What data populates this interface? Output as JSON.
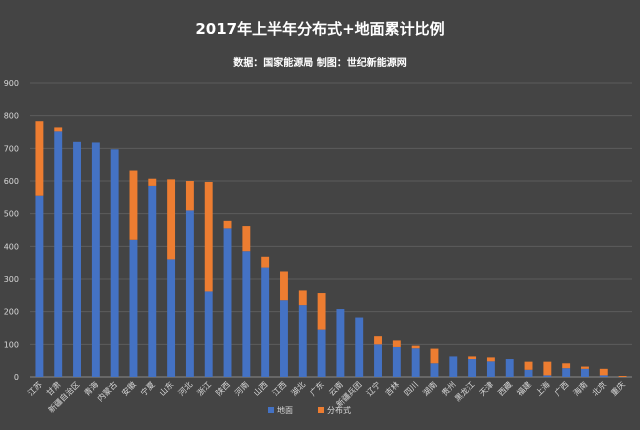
{
  "chart_data": {
    "type": "bar",
    "stacked": true,
    "title": "2017年上半年分布式+地面累计比例",
    "subtitle": "数据：国家能源局 制图：世纪新能源网",
    "ylim": [
      0,
      900
    ],
    "yticks": [
      0,
      100,
      200,
      300,
      400,
      500,
      600,
      700,
      800,
      900
    ],
    "grid": true,
    "legend_position": "bottom",
    "categories": [
      "江苏",
      "甘肃",
      "新疆自治区",
      "青海",
      "内蒙古",
      "安徽",
      "宁夏",
      "山东",
      "河北",
      "浙江",
      "陕西",
      "河南",
      "山西",
      "江西",
      "湖北",
      "广东",
      "云南",
      "新疆兵团",
      "辽宁",
      "吉林",
      "四川",
      "湖南",
      "贵州",
      "黑龙江",
      "天津",
      "西藏",
      "福建",
      "上海",
      "广西",
      "海南",
      "北京",
      "重庆"
    ],
    "series": [
      {
        "name": "地面",
        "color": "#4472C4",
        "values": [
          555,
          752,
          720,
          718,
          697,
          420,
          585,
          360,
          510,
          262,
          455,
          385,
          335,
          235,
          220,
          145,
          208,
          182,
          100,
          92,
          88,
          42,
          63,
          55,
          48,
          55,
          22,
          5,
          27,
          25,
          5,
          0
        ]
      },
      {
        "name": "分布式",
        "color": "#ED7D31",
        "values": [
          228,
          12,
          0,
          0,
          0,
          212,
          22,
          245,
          90,
          335,
          23,
          77,
          33,
          88,
          45,
          112,
          0,
          0,
          25,
          20,
          8,
          45,
          0,
          8,
          12,
          0,
          25,
          42,
          15,
          7,
          20,
          3
        ]
      }
    ]
  }
}
